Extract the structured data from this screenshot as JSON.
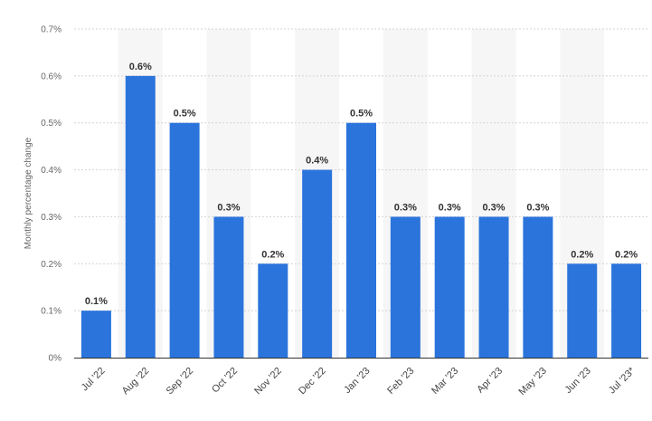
{
  "chart_data": {
    "type": "bar",
    "categories": [
      "Jul '22",
      "Aug '22",
      "Sep '22",
      "Oct '22",
      "Nov '22",
      "Dec '22",
      "Jan '23",
      "Feb '23",
      "Mar '23",
      "Apr '23",
      "May '23",
      "Jun '23",
      "Jul '23*"
    ],
    "values": [
      0.1,
      0.6,
      0.5,
      0.3,
      0.2,
      0.4,
      0.5,
      0.3,
      0.3,
      0.3,
      0.3,
      0.2,
      0.2
    ],
    "data_labels": [
      "0.1%",
      "0.6%",
      "0.5%",
      "0.3%",
      "0.2%",
      "0.4%",
      "0.5%",
      "0.3%",
      "0.3%",
      "0.3%",
      "0.3%",
      "0.2%",
      "0.2%"
    ],
    "title": "",
    "xlabel": "",
    "ylabel": "Monthly percentage change",
    "ylim": [
      0,
      0.7
    ],
    "yticks": [
      0,
      0.1,
      0.2,
      0.3,
      0.4,
      0.5,
      0.6,
      0.7
    ],
    "ytick_labels": [
      "0%",
      "0.1%",
      "0.2%",
      "0.3%",
      "0.4%",
      "0.5%",
      "0.6%",
      "0.7%"
    ],
    "grid": "horizontal dotted",
    "legend": "none",
    "colors": {
      "bar": "#2B74DC",
      "band": "#F6F6F6",
      "grid": "#D4D4D4",
      "axis": "#333333"
    }
  }
}
